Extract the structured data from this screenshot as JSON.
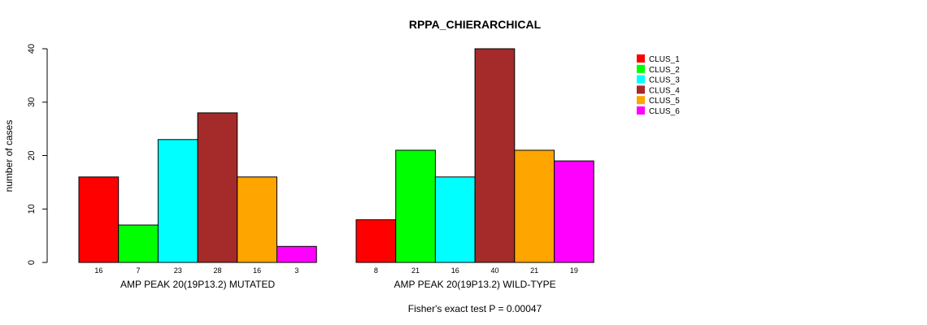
{
  "chart_data": {
    "type": "bar",
    "title": "RPPA_CHIERARCHICAL",
    "ylabel": "number of cases",
    "xlabel": "",
    "ylim": [
      0,
      40
    ],
    "yticks": [
      0,
      10,
      20,
      30,
      40
    ],
    "groups": [
      "AMP PEAK 20(19P13.2) MUTATED",
      "AMP PEAK 20(19P13.2) WILD-TYPE"
    ],
    "series": [
      {
        "name": "CLUS_1",
        "color": "#ff0000",
        "values": [
          16,
          8
        ]
      },
      {
        "name": "CLUS_2",
        "color": "#00ff00",
        "values": [
          7,
          21
        ]
      },
      {
        "name": "CLUS_3",
        "color": "#00ffff",
        "values": [
          23,
          16
        ]
      },
      {
        "name": "CLUS_4",
        "color": "#a52a2a",
        "values": [
          28,
          40
        ]
      },
      {
        "name": "CLUS_5",
        "color": "#ffa500",
        "values": [
          16,
          21
        ]
      },
      {
        "name": "CLUS_6",
        "color": "#ff00ff",
        "values": [
          3,
          19
        ]
      }
    ],
    "footnote": "Fisher's exact test P = 0.00047",
    "legend_position": "top-right"
  }
}
